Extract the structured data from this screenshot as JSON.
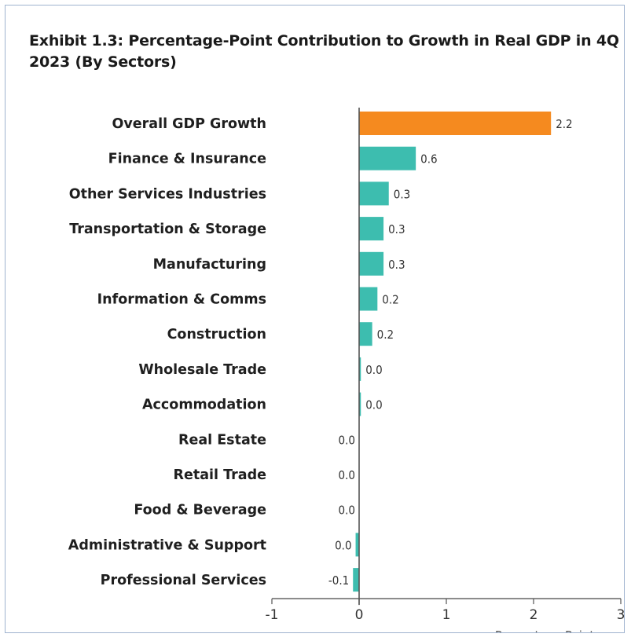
{
  "title": "Exhibit 1.3: Percentage-Point Contribution to Growth in Real GDP in 4Q 2023 (By Sectors)",
  "colors": {
    "highlight": "#f58a1f",
    "bar": "#3dbdaf",
    "axis": "#555555"
  },
  "chart_data": {
    "type": "bar",
    "orientation": "horizontal",
    "title": "Exhibit 1.3: Percentage-Point Contribution to Growth in Real GDP in 4Q 2023 (By Sectors)",
    "xlabel": "Percentage Points",
    "xlim": [
      -1,
      3
    ],
    "xticks": [
      -1,
      0,
      1,
      2,
      3
    ],
    "grid": false,
    "categories": [
      "Overall GDP Growth",
      "Finance & Insurance",
      "Other Services Industries",
      "Transportation & Storage",
      "Manufacturing",
      "Information & Comms",
      "Construction",
      "Wholesale Trade",
      "Accommodation",
      "Real Estate",
      "Retail Trade",
      "Food & Beverage",
      "Administrative & Support",
      "Professional Services"
    ],
    "values": [
      2.2,
      0.65,
      0.34,
      0.28,
      0.28,
      0.21,
      0.15,
      0.02,
      0.02,
      0.0,
      0.0,
      0.0,
      -0.04,
      -0.07
    ],
    "labels": [
      "2.2",
      "0.6",
      "0.3",
      "0.3",
      "0.3",
      "0.2",
      "0.2",
      "0.0",
      "0.0",
      "0.0",
      "0.0",
      "0.0",
      "0.0",
      "-0.1"
    ],
    "highlight_index": 0
  }
}
